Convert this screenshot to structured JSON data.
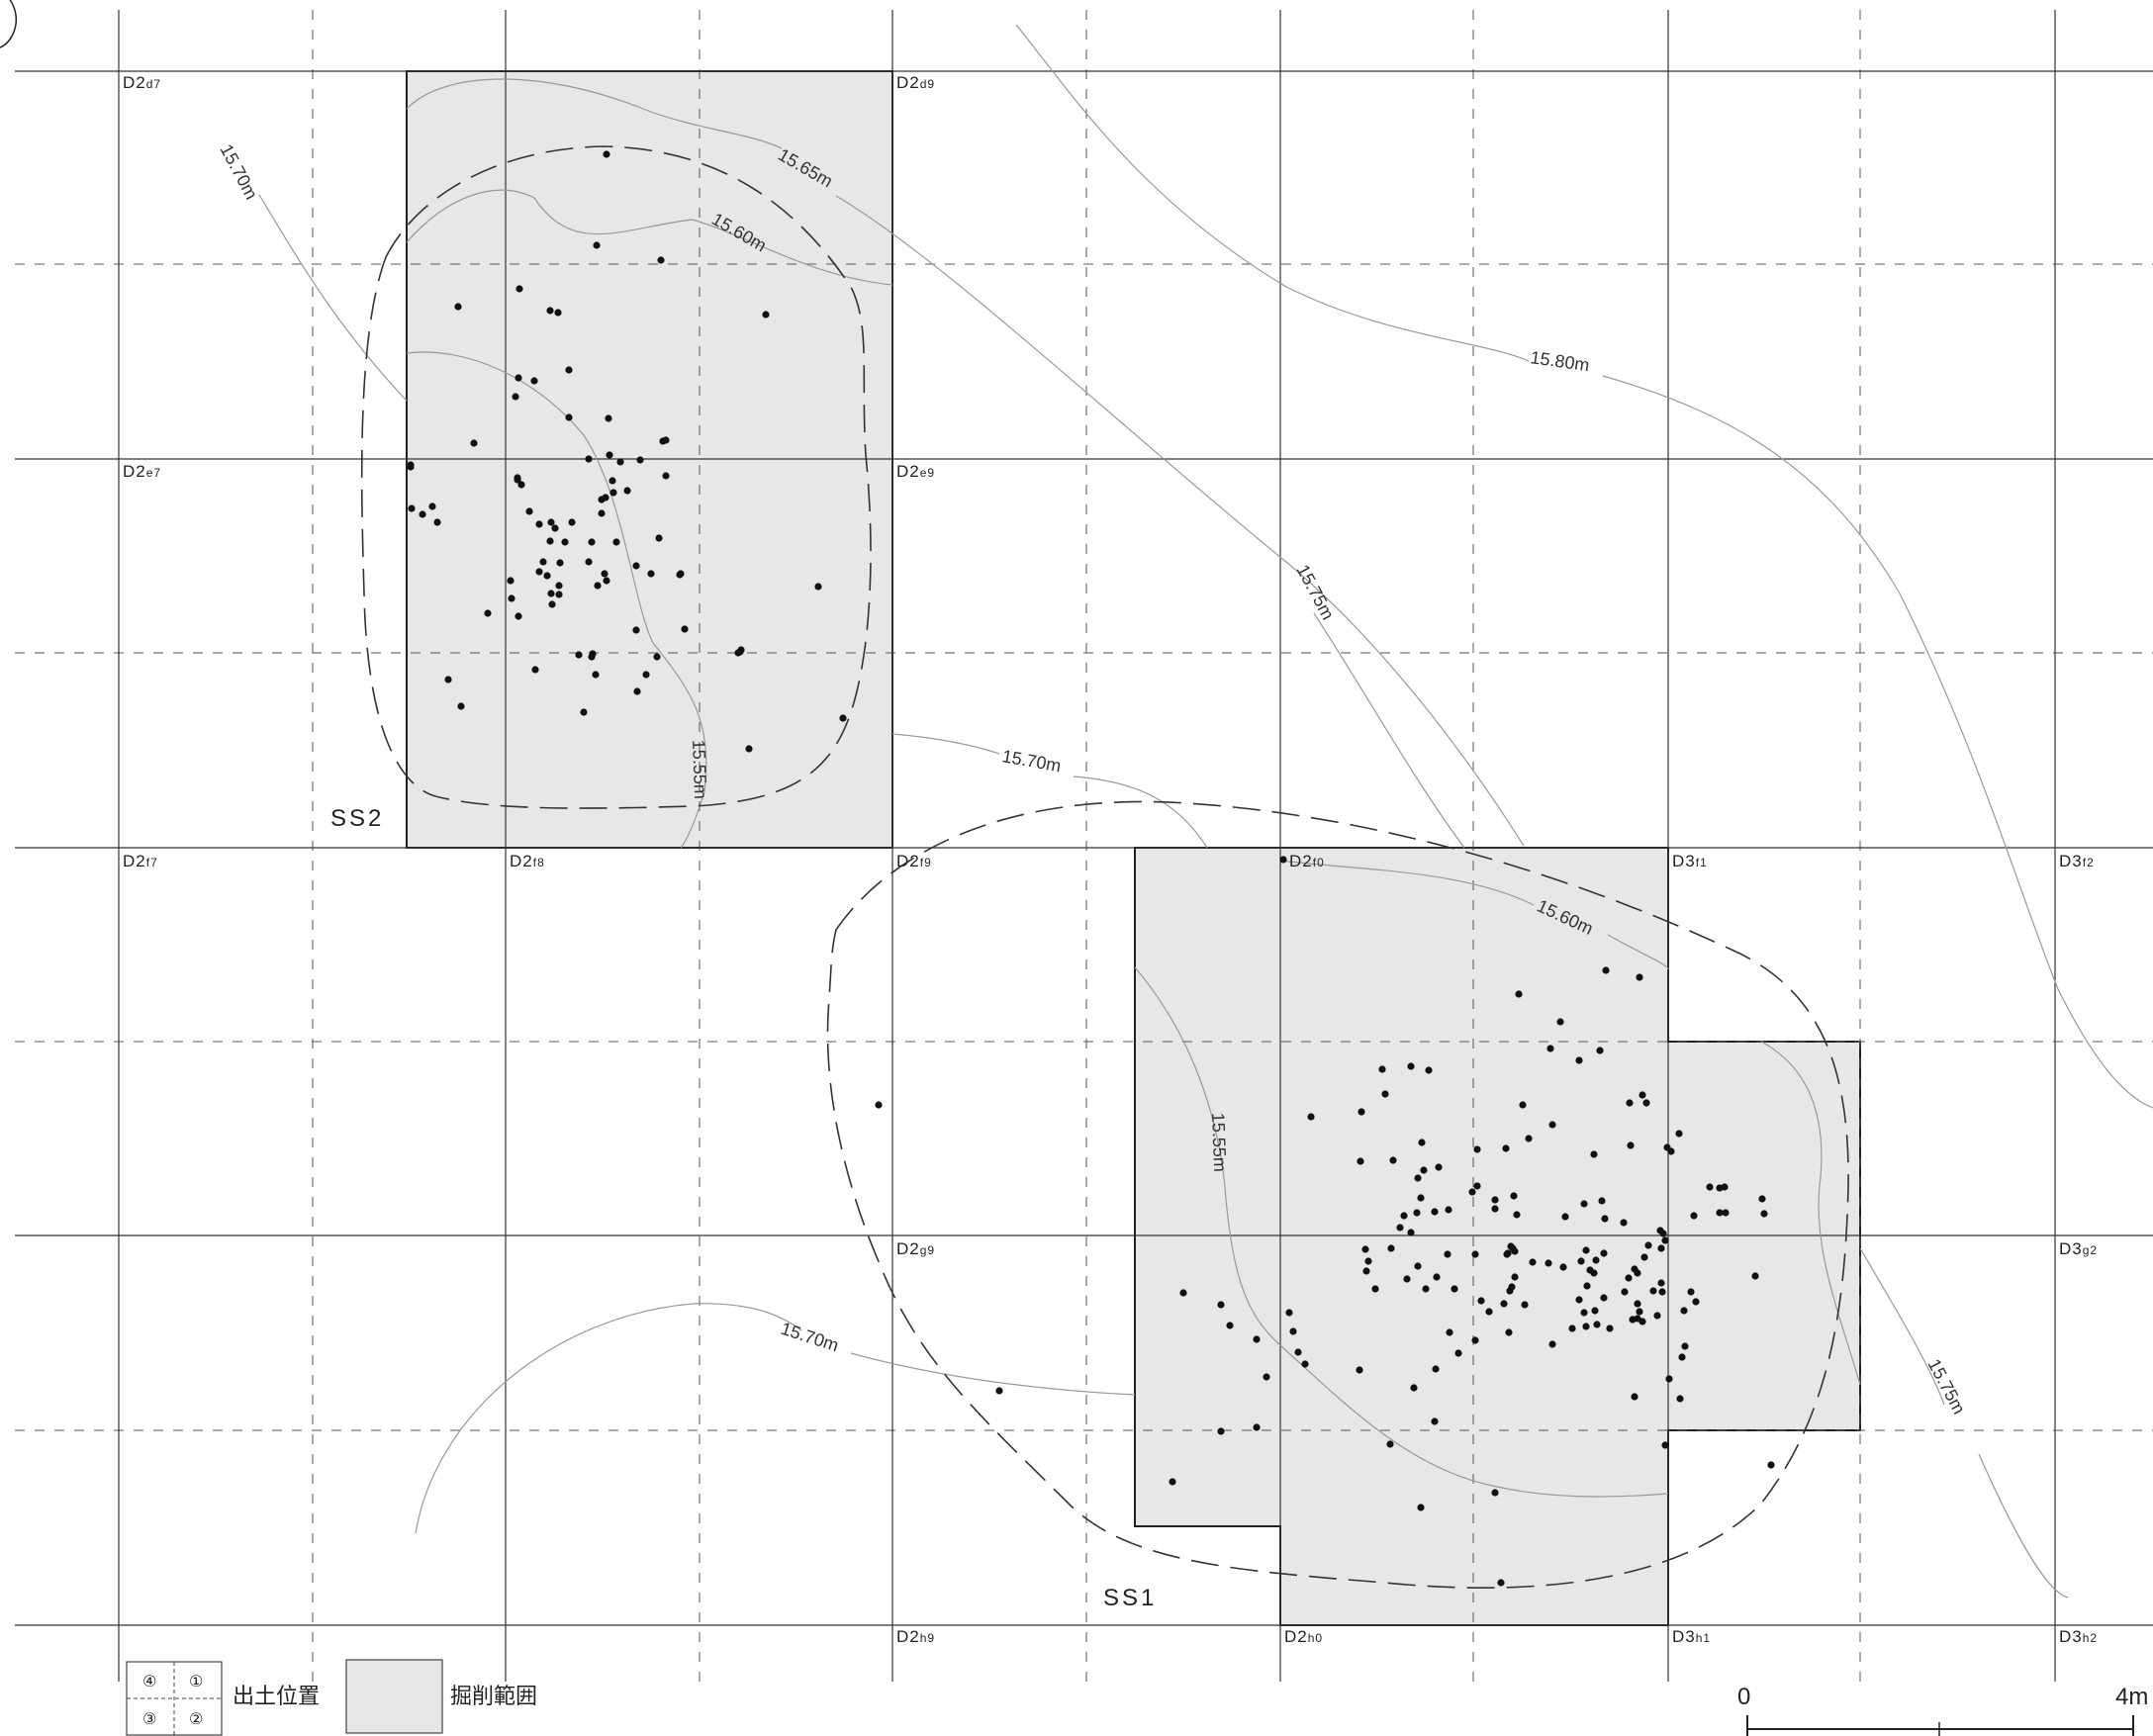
{
  "grid_labels": [
    {
      "main": "D2",
      "sub": "d7"
    },
    {
      "main": "D2",
      "sub": "d9"
    },
    {
      "main": "D2",
      "sub": "e7"
    },
    {
      "main": "D2",
      "sub": "e9"
    },
    {
      "main": "D2",
      "sub": "f7"
    },
    {
      "main": "D2",
      "sub": "f8"
    },
    {
      "main": "D2",
      "sub": "f9"
    },
    {
      "main": "D2",
      "sub": "f0"
    },
    {
      "main": "D3",
      "sub": "f1"
    },
    {
      "main": "D3",
      "sub": "f2"
    },
    {
      "main": "D2",
      "sub": "g9"
    },
    {
      "main": "D3",
      "sub": "g2"
    },
    {
      "main": "D2",
      "sub": "h9"
    },
    {
      "main": "D2",
      "sub": "h0"
    },
    {
      "main": "D3",
      "sub": "h1"
    },
    {
      "main": "D3",
      "sub": "h2"
    }
  ],
  "contour_labels": [
    "15.70m",
    "15.65m",
    "15.60m",
    "15.80m",
    "15.75m",
    "15.55m",
    "15.70m",
    "15.60m",
    "15.55m",
    "15.70m",
    "15.75m"
  ],
  "features": [
    "SS2",
    "SS1"
  ],
  "legend": {
    "quadrants": [
      "④",
      "①",
      "③",
      "②"
    ],
    "position_label": "出土位置",
    "excavation_label": "掘削範囲"
  },
  "scale": {
    "start": "0",
    "end": "4m"
  }
}
